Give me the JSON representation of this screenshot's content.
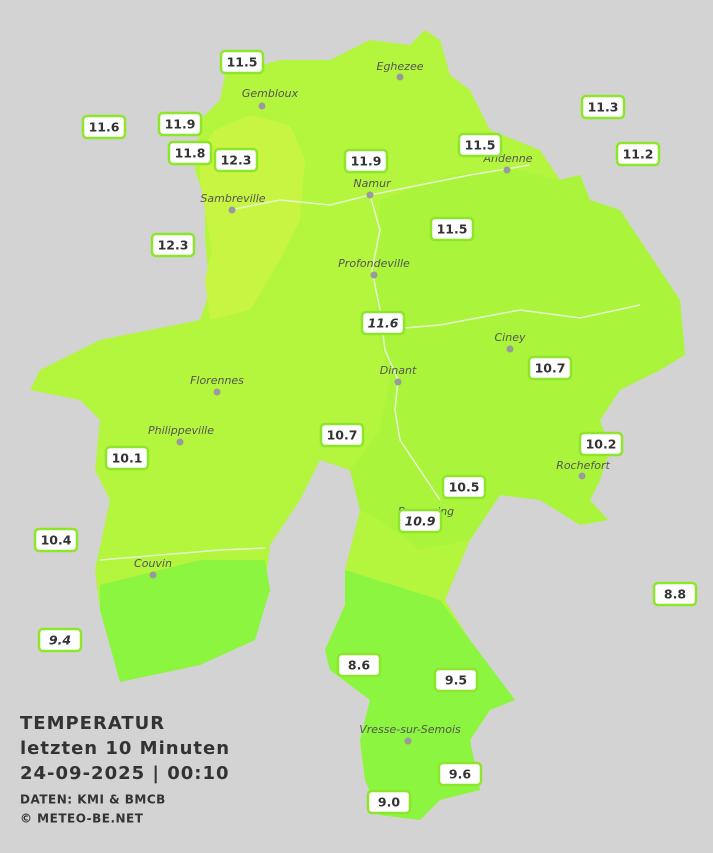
{
  "title": [
    "TEMPERATUR",
    "letzten 10 Minuten",
    "24-09-2025  |  00:10"
  ],
  "credits": [
    "DATEN: KMI & BMCB",
    "© METEO-BE.NET"
  ],
  "cities": [
    "Eghezee",
    "Gembloux",
    "Andenne",
    "Namur",
    "Sambreville",
    "Profondeville",
    "Ciney",
    "Dinant",
    "Florennes",
    "Philippeville",
    "Rochefort",
    "Beauraing",
    "Couvin",
    "Vresse-sur-Semois"
  ],
  "stations": [
    {
      "label": "11.5"
    },
    {
      "label": "11.6"
    },
    {
      "label": "11.9"
    },
    {
      "label": "11.8"
    },
    {
      "label": "12.3"
    },
    {
      "label": "11.9"
    },
    {
      "label": "11.5"
    },
    {
      "label": "11.3"
    },
    {
      "label": "11.2"
    },
    {
      "label": "12.3"
    },
    {
      "label": "11.5"
    },
    {
      "label": "11.6",
      "italic": true
    },
    {
      "label": "10.7"
    },
    {
      "label": "10.7"
    },
    {
      "label": "10.2"
    },
    {
      "label": "10.1"
    },
    {
      "label": "10.5"
    },
    {
      "label": "10.9",
      "italic": true
    },
    {
      "label": "10.4"
    },
    {
      "label": "8.8"
    },
    {
      "label": "9.4",
      "italic": true
    },
    {
      "label": "8.6"
    },
    {
      "label": "9.5"
    },
    {
      "label": "9.6"
    },
    {
      "label": "9.0"
    }
  ]
}
